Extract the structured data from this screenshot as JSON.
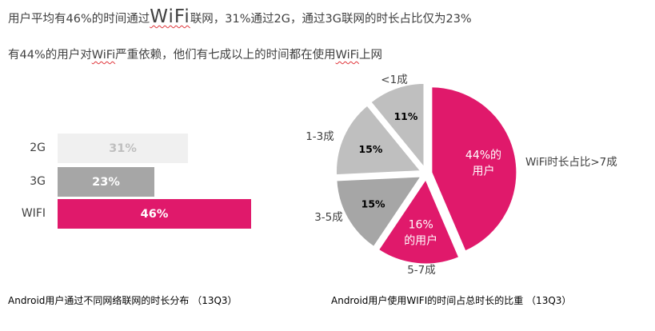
{
  "headline1": {
    "pre": "用户平均有46%的时间通过",
    "wifi": "WiFi",
    "post": "联网，31%通过2G，通过3G联网的时长占比仅为23%"
  },
  "headline2": {
    "pre": "有44%的用户对",
    "wifi": "WiFi",
    "mid": "严重依赖，他们有七成以上的时间都在使用",
    "wifi2": "WiFi",
    "post": "上网"
  },
  "colors": {
    "pink": "#e0196b",
    "dark_gray": "#a6a6a6",
    "mid_gray": "#bfbfbf",
    "light_gray": "#f0f0f0"
  },
  "chart_data": [
    {
      "type": "bar",
      "orientation": "horizontal",
      "categories": [
        "2G",
        "3G",
        "WIFI"
      ],
      "values": [
        31,
        23,
        46
      ],
      "data_labels": [
        "31%",
        "23%",
        "46%"
      ],
      "colors": [
        "#f0f0f0",
        "#a6a6a6",
        "#e0196b"
      ],
      "label_colors": [
        "#bfbfbf",
        "#ffffff",
        "#ffffff"
      ],
      "caption": "Android用户通过不同网络联网的时长分布 （13Q3）"
    },
    {
      "type": "pie",
      "exploded": true,
      "categories": [
        "<1成",
        "1-3成",
        "3-5成",
        "5-7成",
        "WiFi时长占比>7成"
      ],
      "values": [
        11,
        15,
        15,
        16,
        44
      ],
      "data_labels": [
        "11%",
        "15%",
        "15%",
        "16%\n的用户",
        "44%的\n用户"
      ],
      "colors": [
        "#bfbfbf",
        "#bfbfbf",
        "#a6a6a6",
        "#e0196b",
        "#e0196b"
      ],
      "caption": "Android用户使用WIFI的时间占总时长的比重 （13Q3）"
    }
  ]
}
